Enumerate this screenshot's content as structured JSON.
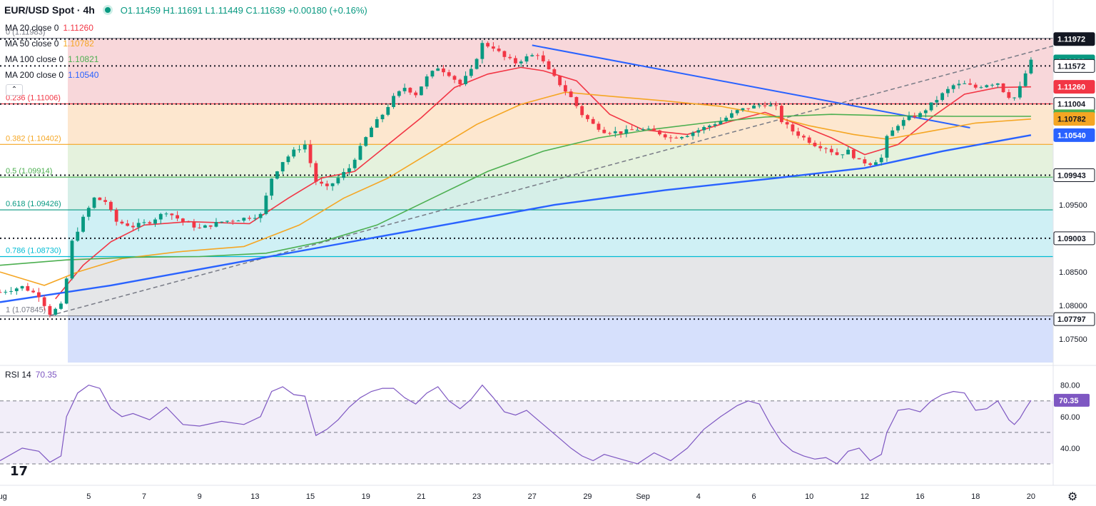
{
  "header": {
    "symbol": "EUR/USD Spot · 4h",
    "ohlc": "O1.11459 H1.11691 L1.11449 C1.11639 +0.00180 (+0.16%)"
  },
  "moving_averages": [
    {
      "label": "MA 20 close 0",
      "value": "1.11260",
      "color": "#f23645"
    },
    {
      "label": "MA 50 close 0",
      "value": "1.10782",
      "color": "#f5a623"
    },
    {
      "label": "MA 100 close 0",
      "value": "1.10821",
      "color": "#4caf50"
    },
    {
      "label": "MA 200 close 0",
      "value": "1.10540",
      "color": "#2962ff"
    }
  ],
  "rsi_label": {
    "name": "RSI 14",
    "value": "70.35"
  },
  "colors": {
    "up": "#089981",
    "down": "#f23645",
    "rsi": "#7e57c2"
  },
  "chart_data": {
    "type": "candlestick",
    "title": "EUR/USD Spot · 4h",
    "price_range": [
      1.0715,
      1.1215
    ],
    "x_labels": [
      {
        "t": 0,
        "label": "Aug"
      },
      {
        "t": 16,
        "label": "5"
      },
      {
        "t": 26,
        "label": "7"
      },
      {
        "t": 36,
        "label": "9"
      },
      {
        "t": 46,
        "label": "13"
      },
      {
        "t": 56,
        "label": "15"
      },
      {
        "t": 66,
        "label": "19"
      },
      {
        "t": 76,
        "label": "21"
      },
      {
        "t": 86,
        "label": "23"
      },
      {
        "t": 96,
        "label": "27"
      },
      {
        "t": 106,
        "label": "29"
      },
      {
        "t": 116,
        "label": "Sep"
      },
      {
        "t": 126,
        "label": "4"
      },
      {
        "t": 136,
        "label": "6"
      },
      {
        "t": 146,
        "label": "10"
      },
      {
        "t": 156,
        "label": "12"
      },
      {
        "t": 166,
        "label": "16"
      },
      {
        "t": 176,
        "label": "18"
      },
      {
        "t": 186,
        "label": "20"
      }
    ],
    "y_ticks": [
      "1.08000",
      "1.08500",
      "1.09500",
      "1.07500"
    ],
    "price_tags": [
      {
        "value": 1.11972,
        "label": "1.11972",
        "bg": "#131722",
        "fg": "#ffffff"
      },
      {
        "value": 1.11639,
        "label": "1.11639",
        "bg": "#089981",
        "fg": "#ffffff"
      },
      {
        "value": 1.11572,
        "label": "1.11572",
        "bg": "#ffffff",
        "fg": "#131722"
      },
      {
        "value": 1.1126,
        "label": "1.11260",
        "bg": "#f23645",
        "fg": "#ffffff"
      },
      {
        "value": 1.11004,
        "label": "1.11004",
        "bg": "#ffffff",
        "fg": "#131722"
      },
      {
        "value": 1.10821,
        "label": "1.10821",
        "bg": "#4caf50",
        "fg": "#ffffff"
      },
      {
        "value": 1.10782,
        "label": "1.10782",
        "bg": "#f5a623",
        "fg": "#131722"
      },
      {
        "value": 1.1054,
        "label": "1.10540",
        "bg": "#2962ff",
        "fg": "#ffffff"
      },
      {
        "value": 1.09943,
        "label": "1.09943",
        "bg": "#ffffff",
        "fg": "#131722"
      },
      {
        "value": 1.09003,
        "label": "1.09003",
        "bg": "#ffffff",
        "fg": "#131722"
      },
      {
        "value": 1.07797,
        "label": "1.07797",
        "bg": "#ffffff",
        "fg": "#131722"
      }
    ],
    "fib_levels": [
      {
        "ratio": "0",
        "price": 1.11983,
        "label": "0 (1.11983)",
        "color": "#787b86",
        "zone": "#f8d7da"
      },
      {
        "ratio": "0.236",
        "price": 1.11006,
        "label": "0.236 (1.11006)",
        "color": "#f23645",
        "zone": "#fde7cf"
      },
      {
        "ratio": "0.382",
        "price": 1.10402,
        "label": "0.382 (1.10402)",
        "color": "#f5a623",
        "zone": "#e5f2dd"
      },
      {
        "ratio": "0.5",
        "price": 1.09914,
        "label": "0.5 (1.09914)",
        "color": "#4caf50",
        "zone": "#d6efe8"
      },
      {
        "ratio": "0.618",
        "price": 1.09426,
        "label": "0.618 (1.09426)",
        "color": "#089981",
        "zone": "#cff0f5"
      },
      {
        "ratio": "0.786",
        "price": 1.0873,
        "label": "0.786 (1.08730)",
        "color": "#00bcd4",
        "zone": "#e5e6e8"
      },
      {
        "ratio": "1",
        "price": 1.07845,
        "label": "1 (1.07845)",
        "color": "#787b86",
        "zone": "#d6e0fc"
      }
    ],
    "dotted_levels": [
      1.11972,
      1.11572,
      1.11004,
      1.09943,
      1.09003,
      1.07797
    ],
    "trendlines": [
      {
        "name": "descending",
        "from": [
          96,
          1.1188
        ],
        "to": [
          175,
          1.1065
        ],
        "color": "#2962ff"
      },
      {
        "name": "rising",
        "from": [
          9,
          1.0785
        ],
        "to": [
          195,
          1.1198
        ],
        "color": "#787b86",
        "dashed": true
      }
    ],
    "path": [
      [
        0,
        1.082
      ],
      [
        4,
        1.0828
      ],
      [
        7,
        1.0815
      ],
      [
        9,
        1.0788
      ],
      [
        11,
        1.08
      ],
      [
        12,
        1.084
      ],
      [
        13,
        1.0895
      ],
      [
        15,
        1.093
      ],
      [
        17,
        1.096
      ],
      [
        19,
        1.0955
      ],
      [
        21,
        1.0925
      ],
      [
        24,
        1.0918
      ],
      [
        27,
        1.0925
      ],
      [
        30,
        1.094
      ],
      [
        33,
        1.0925
      ],
      [
        36,
        1.0915
      ],
      [
        40,
        1.0925
      ],
      [
        44,
        1.093
      ],
      [
        47,
        1.0935
      ],
      [
        49,
        1.099
      ],
      [
        51,
        1.1015
      ],
      [
        53,
        1.103
      ],
      [
        55,
        1.104
      ],
      [
        57,
        1.0985
      ],
      [
        59,
        1.0975
      ],
      [
        61,
        1.099
      ],
      [
        63,
        1.1005
      ],
      [
        65,
        1.1035
      ],
      [
        67,
        1.1065
      ],
      [
        69,
        1.1085
      ],
      [
        71,
        1.111
      ],
      [
        73,
        1.1125
      ],
      [
        75,
        1.1115
      ],
      [
        77,
        1.114
      ],
      [
        79,
        1.1155
      ],
      [
        81,
        1.1145
      ],
      [
        83,
        1.113
      ],
      [
        85,
        1.115
      ],
      [
        87,
        1.119
      ],
      [
        89,
        1.1185
      ],
      [
        91,
        1.117
      ],
      [
        93,
        1.1162
      ],
      [
        95,
        1.117
      ],
      [
        97,
        1.1175
      ],
      [
        99,
        1.115
      ],
      [
        101,
        1.113
      ],
      [
        103,
        1.111
      ],
      [
        105,
        1.1085
      ],
      [
        107,
        1.107
      ],
      [
        109,
        1.106
      ],
      [
        112,
        1.1058
      ],
      [
        115,
        1.1063
      ],
      [
        118,
        1.106
      ],
      [
        121,
        1.105
      ],
      [
        124,
        1.1055
      ],
      [
        127,
        1.1065
      ],
      [
        130,
        1.1075
      ],
      [
        133,
        1.109
      ],
      [
        135,
        1.1095
      ],
      [
        138,
        1.11
      ],
      [
        140,
        1.1095
      ],
      [
        141,
        1.1075
      ],
      [
        143,
        1.106
      ],
      [
        145,
        1.105
      ],
      [
        147,
        1.104
      ],
      [
        149,
        1.1035
      ],
      [
        151,
        1.1025
      ],
      [
        153,
        1.103
      ],
      [
        155,
        1.1015
      ],
      [
        157,
        1.1012
      ],
      [
        159,
        1.102
      ],
      [
        160,
        1.105
      ],
      [
        162,
        1.107
      ],
      [
        164,
        1.108
      ],
      [
        166,
        1.1085
      ],
      [
        168,
        1.11
      ],
      [
        170,
        1.1115
      ],
      [
        172,
        1.1128
      ],
      [
        174,
        1.113
      ],
      [
        176,
        1.1125
      ],
      [
        178,
        1.113
      ],
      [
        180,
        1.1132
      ],
      [
        181,
        1.112
      ],
      [
        182,
        1.1112
      ],
      [
        183,
        1.111
      ],
      [
        184,
        1.1125
      ],
      [
        185,
        1.1146
      ],
      [
        186,
        1.1164
      ]
    ],
    "ma_paths": [
      {
        "name": "MA 20",
        "color": "#f23645",
        "points": [
          [
            10,
            1.081
          ],
          [
            15,
            1.086
          ],
          [
            20,
            1.0895
          ],
          [
            26,
            1.092
          ],
          [
            34,
            1.0925
          ],
          [
            45,
            1.0922
          ],
          [
            52,
            1.096
          ],
          [
            58,
            1.099
          ],
          [
            64,
            1.1
          ],
          [
            70,
            1.104
          ],
          [
            76,
            1.108
          ],
          [
            82,
            1.1125
          ],
          [
            88,
            1.1145
          ],
          [
            94,
            1.1155
          ],
          [
            98,
            1.115
          ],
          [
            104,
            1.1135
          ],
          [
            110,
            1.1085
          ],
          [
            116,
            1.1062
          ],
          [
            124,
            1.1055
          ],
          [
            132,
            1.1075
          ],
          [
            138,
            1.1088
          ],
          [
            144,
            1.107
          ],
          [
            150,
            1.105
          ],
          [
            156,
            1.1025
          ],
          [
            162,
            1.104
          ],
          [
            168,
            1.108
          ],
          [
            174,
            1.1115
          ],
          [
            180,
            1.1125
          ],
          [
            186,
            1.1126
          ]
        ]
      },
      {
        "name": "MA 50",
        "color": "#f5a623",
        "points": [
          [
            0,
            1.085
          ],
          [
            8,
            1.083
          ],
          [
            14,
            1.085
          ],
          [
            22,
            1.087
          ],
          [
            32,
            1.088
          ],
          [
            44,
            1.0888
          ],
          [
            54,
            1.092
          ],
          [
            62,
            1.096
          ],
          [
            70,
            1.099
          ],
          [
            78,
            1.103
          ],
          [
            86,
            1.107
          ],
          [
            94,
            1.11
          ],
          [
            102,
            1.1118
          ],
          [
            110,
            1.1112
          ],
          [
            120,
            1.1105
          ],
          [
            130,
            1.1097
          ],
          [
            138,
            1.1085
          ],
          [
            146,
            1.1068
          ],
          [
            154,
            1.1055
          ],
          [
            160,
            1.1048
          ],
          [
            168,
            1.106
          ],
          [
            176,
            1.1072
          ],
          [
            186,
            1.1078
          ]
        ]
      },
      {
        "name": "MA 100",
        "color": "#4caf50",
        "points": [
          [
            0,
            1.086
          ],
          [
            12,
            1.0868
          ],
          [
            24,
            1.0872
          ],
          [
            36,
            1.0873
          ],
          [
            48,
            1.0878
          ],
          [
            58,
            1.0895
          ],
          [
            68,
            1.092
          ],
          [
            78,
            1.096
          ],
          [
            88,
            1.1
          ],
          [
            98,
            1.103
          ],
          [
            108,
            1.105
          ],
          [
            118,
            1.1063
          ],
          [
            128,
            1.1073
          ],
          [
            138,
            1.1081
          ],
          [
            150,
            1.1085
          ],
          [
            160,
            1.1083
          ],
          [
            172,
            1.1082
          ],
          [
            186,
            1.1082
          ]
        ]
      },
      {
        "name": "MA 200",
        "color": "#2962ff",
        "points": [
          [
            0,
            1.0805
          ],
          [
            20,
            1.083
          ],
          [
            40,
            1.086
          ],
          [
            60,
            1.089
          ],
          [
            80,
            1.092
          ],
          [
            100,
            1.095
          ],
          [
            120,
            1.0972
          ],
          [
            140,
            1.099
          ],
          [
            156,
            1.1005
          ],
          [
            170,
            1.103
          ],
          [
            186,
            1.1054
          ]
        ]
      }
    ],
    "rsi": {
      "name": "RSI 14",
      "value": 70.35,
      "ylim": [
        20,
        88
      ],
      "y_ticks": [
        80,
        60,
        40
      ],
      "bands": [
        70,
        50,
        30
      ],
      "points": [
        [
          0,
          32
        ],
        [
          4,
          40
        ],
        [
          7,
          38
        ],
        [
          9,
          31
        ],
        [
          11,
          35
        ],
        [
          12,
          60
        ],
        [
          14,
          75
        ],
        [
          16,
          80
        ],
        [
          18,
          78
        ],
        [
          20,
          65
        ],
        [
          22,
          60
        ],
        [
          24,
          62
        ],
        [
          27,
          58
        ],
        [
          30,
          66
        ],
        [
          33,
          55
        ],
        [
          36,
          54
        ],
        [
          40,
          57
        ],
        [
          44,
          55
        ],
        [
          47,
          60
        ],
        [
          49,
          76
        ],
        [
          51,
          79
        ],
        [
          53,
          74
        ],
        [
          55,
          73
        ],
        [
          57,
          48
        ],
        [
          59,
          52
        ],
        [
          61,
          58
        ],
        [
          63,
          66
        ],
        [
          65,
          72
        ],
        [
          67,
          76
        ],
        [
          69,
          78
        ],
        [
          71,
          78
        ],
        [
          73,
          72
        ],
        [
          75,
          68
        ],
        [
          77,
          75
        ],
        [
          79,
          79
        ],
        [
          81,
          70
        ],
        [
          83,
          65
        ],
        [
          85,
          71
        ],
        [
          87,
          80
        ],
        [
          89,
          72
        ],
        [
          91,
          63
        ],
        [
          93,
          61
        ],
        [
          95,
          64
        ],
        [
          97,
          58
        ],
        [
          99,
          52
        ],
        [
          101,
          46
        ],
        [
          103,
          40
        ],
        [
          105,
          35
        ],
        [
          107,
          32
        ],
        [
          109,
          36
        ],
        [
          112,
          33
        ],
        [
          115,
          30
        ],
        [
          118,
          37
        ],
        [
          121,
          32
        ],
        [
          124,
          40
        ],
        [
          127,
          52
        ],
        [
          130,
          60
        ],
        [
          133,
          67
        ],
        [
          135,
          70
        ],
        [
          137,
          68
        ],
        [
          139,
          55
        ],
        [
          141,
          44
        ],
        [
          143,
          38
        ],
        [
          145,
          35
        ],
        [
          147,
          33
        ],
        [
          149,
          34
        ],
        [
          151,
          30
        ],
        [
          153,
          38
        ],
        [
          155,
          40
        ],
        [
          157,
          32
        ],
        [
          159,
          36
        ],
        [
          160,
          50
        ],
        [
          162,
          64
        ],
        [
          164,
          65
        ],
        [
          166,
          63
        ],
        [
          168,
          70
        ],
        [
          170,
          74
        ],
        [
          172,
          76
        ],
        [
          174,
          75
        ],
        [
          176,
          64
        ],
        [
          178,
          65
        ],
        [
          180,
          70
        ],
        [
          181,
          64
        ],
        [
          182,
          58
        ],
        [
          183,
          55
        ],
        [
          184,
          59
        ],
        [
          185,
          65
        ],
        [
          186,
          70.35
        ]
      ]
    }
  }
}
